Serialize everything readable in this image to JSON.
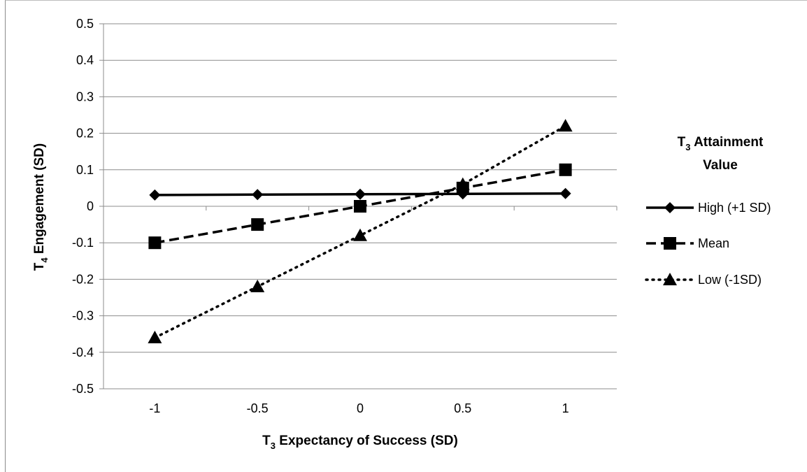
{
  "chart_data": {
    "type": "line",
    "x_categories": [
      "-1",
      "-0.5",
      "0",
      "0.5",
      "1"
    ],
    "x_values": [
      -1,
      -0.5,
      0,
      0.5,
      1
    ],
    "ylim": [
      -0.5,
      0.5
    ],
    "y_ticks": [
      "0.5",
      "0.4",
      "0.3",
      "0.2",
      "0.1",
      "0",
      "-0.1",
      "-0.2",
      "-0.3",
      "-0.4",
      "-0.5"
    ],
    "y_tick_values": [
      0.5,
      0.4,
      0.3,
      0.2,
      0.1,
      0,
      -0.1,
      -0.2,
      -0.3,
      -0.4,
      -0.5
    ],
    "xlabel": {
      "prefix": "T",
      "sub": "3",
      "rest": " Expectancy of Success (SD)"
    },
    "ylabel": {
      "prefix": "T",
      "sub": "4",
      "rest": " Engagement (SD)"
    },
    "grid": "horizontal",
    "legend": {
      "placement": "right",
      "title_line1": {
        "prefix": "T",
        "sub": "3",
        "rest": " Attainment"
      },
      "title_line2": "Value"
    },
    "series": [
      {
        "name": "High (+1 SD)",
        "marker": "diamond",
        "line_style": "solid",
        "values": [
          0.031,
          0.032,
          0.033,
          0.034,
          0.035
        ]
      },
      {
        "name": "Mean",
        "marker": "square",
        "line_style": "dashed",
        "values": [
          -0.1,
          -0.05,
          0.0,
          0.05,
          0.1
        ]
      },
      {
        "name": "Low (-1SD)",
        "marker": "triangle",
        "line_style": "dotted",
        "values": [
          -0.36,
          -0.22,
          -0.08,
          0.06,
          0.22
        ]
      }
    ],
    "colors": {
      "line": "#000000",
      "grid": "#8c8c8c"
    }
  }
}
